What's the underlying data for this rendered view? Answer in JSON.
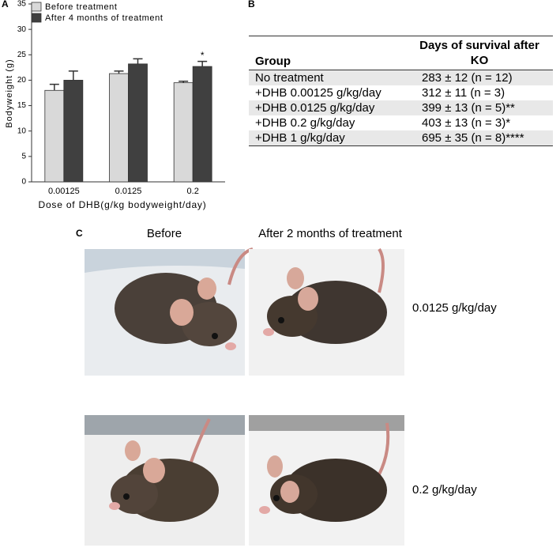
{
  "panels": {
    "a": "A",
    "b": "B",
    "c": "C"
  },
  "chart_data": {
    "type": "bar",
    "x_label": "Dose of DHB(g/kg bodyweight/day)",
    "y_label": "Bodyweight (g)",
    "categories": [
      "0.00125",
      "0.0125",
      "0.2"
    ],
    "series": [
      {
        "name": "Before treatment",
        "color": "#d9d9d9",
        "values": [
          18,
          21.3,
          19.5
        ],
        "errors": [
          1.2,
          0.5,
          0.3
        ]
      },
      {
        "name": "After 4 months of treatment",
        "color": "#404040",
        "values": [
          20,
          23.2,
          22.7
        ],
        "errors": [
          1.8,
          1,
          1
        ]
      }
    ],
    "annotation": "*",
    "ylim": [
      0,
      35
    ],
    "yticks": [
      0,
      5,
      10,
      15,
      20,
      25,
      30,
      35
    ],
    "grid": false,
    "legend": "top-left"
  },
  "table": {
    "header": [
      "Group",
      "Days of survival after KO"
    ],
    "rows": [
      [
        "No treatment",
        "283  ± 12 (n = 12)"
      ],
      [
        "+DHB 0.00125 g/kg/day",
        "312  ± 11 (n = 3)"
      ],
      [
        "+DHB 0.0125 g/kg/day",
        "399  ± 13 (n = 5)**"
      ],
      [
        "+DHB 0.2 g/kg/day",
        "403  ± 13 (n = 3)*"
      ],
      [
        "+DHB 1 g/kg/day",
        "695  ± 35 (n = 8)****"
      ]
    ]
  },
  "photos": {
    "before": "Before",
    "after": "After 2 months of treatment",
    "doses": [
      "0.0125 g/kg/day",
      "0.2 g/kg/day"
    ]
  }
}
